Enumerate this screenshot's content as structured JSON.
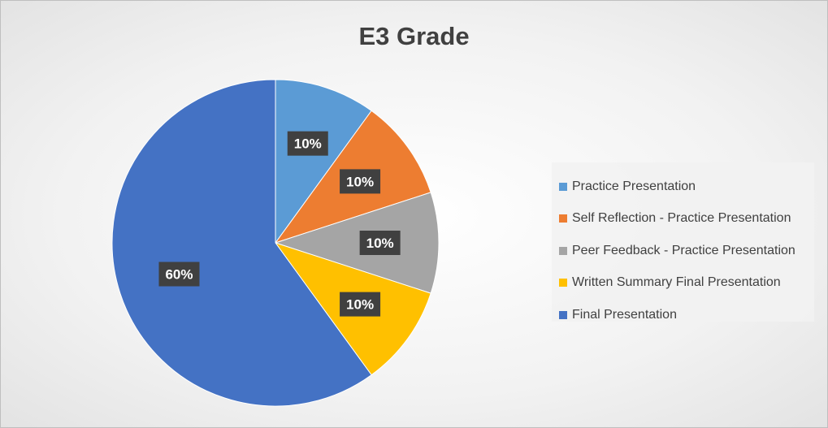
{
  "chart_data": {
    "type": "pie",
    "title": "E3 Grade",
    "categories": [
      "Practice Presentation",
      "Self Reflection  - Practice Presentation",
      "Peer Feedback - Practice Presentation",
      "Written Summary Final Presentation",
      "Final Presentation"
    ],
    "values": [
      10,
      10,
      10,
      10,
      60
    ],
    "labels": [
      "10%",
      "10%",
      "10%",
      "10%",
      "60%"
    ],
    "colors": [
      "#5b9bd5",
      "#ed7d31",
      "#a5a5a5",
      "#ffc000",
      "#4472c4"
    ],
    "legend_position": "right"
  }
}
